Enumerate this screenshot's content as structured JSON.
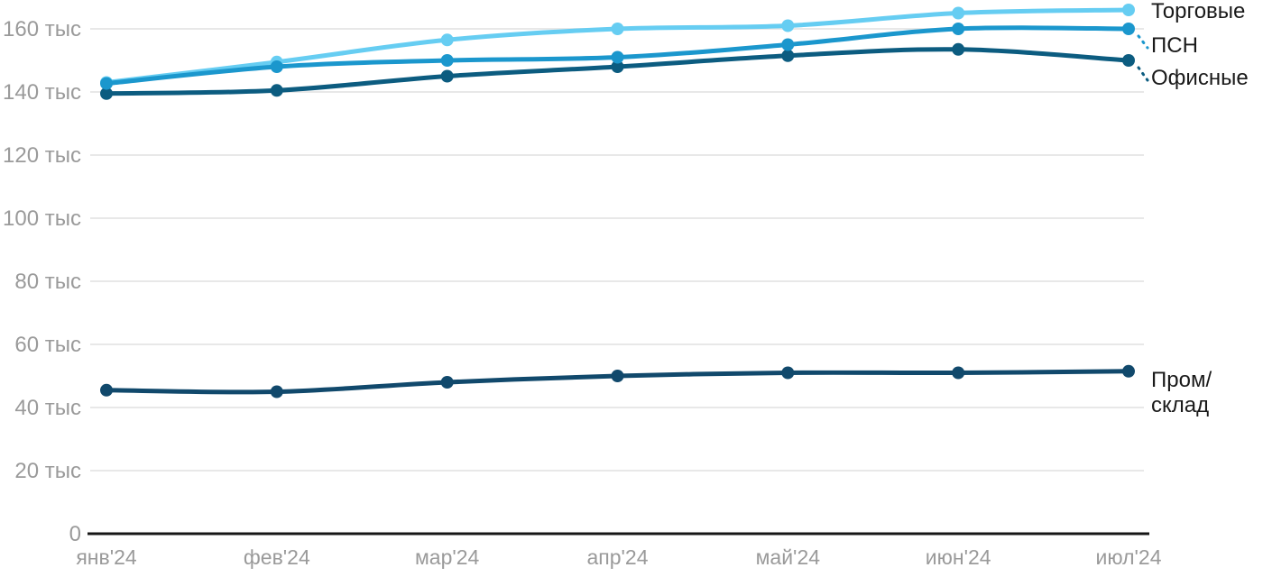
{
  "colors": {
    "background": "#ffffff",
    "grid": "#e8e8e8",
    "axis": "#161616",
    "tick_text": "#9a9a9a",
    "legend_text": "#1a1a1a",
    "series_torgovye": "#66cdf2",
    "series_psn": "#1b97cd",
    "series_ofisnye": "#0c5c80",
    "series_prom_sklad": "#11496c"
  },
  "chart_data": {
    "type": "line",
    "title": "",
    "xlabel": "",
    "ylabel": "",
    "grid": "horizontal",
    "legend_position": "right-of-last-point",
    "x_categories": [
      "янв'24",
      "фев'24",
      "мар'24",
      "апр'24",
      "май'24",
      "июн'24",
      "июл'24"
    ],
    "y_axis": {
      "min": 0,
      "max": 160,
      "tick_step": 20,
      "unit_suffix": " тыс",
      "ticks": [
        {
          "value": 0,
          "label": "0"
        },
        {
          "value": 20,
          "label": "20 тыс"
        },
        {
          "value": 40,
          "label": "40 тыс"
        },
        {
          "value": 60,
          "label": "60 тыс"
        },
        {
          "value": 80,
          "label": "80 тыс"
        },
        {
          "value": 100,
          "label": "100 тыс"
        },
        {
          "value": 120,
          "label": "120 тыс"
        },
        {
          "value": 140,
          "label": "140 тыс"
        },
        {
          "value": 160,
          "label": "160 тыс"
        }
      ]
    },
    "series": [
      {
        "name": "Торговые",
        "label_lines": [
          "Торговые"
        ],
        "color": "#66cdf2",
        "values": [
          143,
          149.5,
          156.5,
          160,
          161,
          165,
          166
        ]
      },
      {
        "name": "ПСН",
        "label_lines": [
          "ПСН"
        ],
        "color": "#1b97cd",
        "values": [
          142.7,
          148,
          150,
          151,
          155,
          160,
          160
        ]
      },
      {
        "name": "Офисные",
        "label_lines": [
          "Офисные"
        ],
        "color": "#0c5c80",
        "values": [
          139.5,
          140.5,
          145,
          148,
          151.5,
          153.5,
          150
        ]
      },
      {
        "name": "Пром/склад",
        "label_lines": [
          "Пром/",
          "склад"
        ],
        "color": "#11496c",
        "values": [
          45.5,
          45,
          48,
          50,
          51,
          51,
          51.5
        ]
      }
    ]
  }
}
